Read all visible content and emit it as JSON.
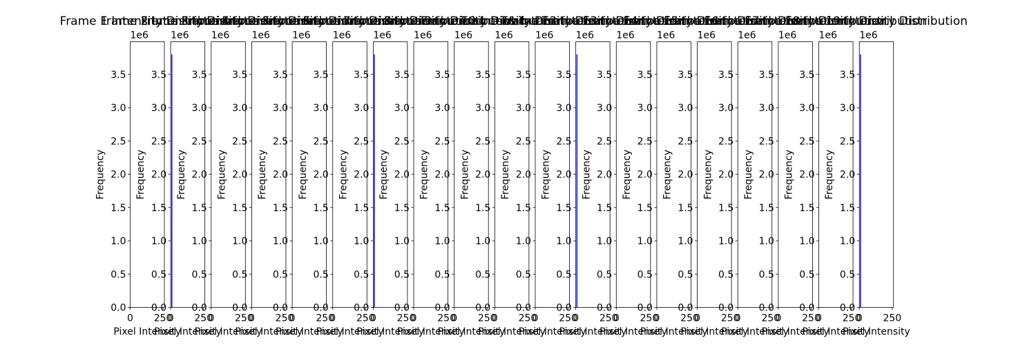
{
  "chart_data": {
    "type": "bar",
    "panel_count": 19,
    "shared": {
      "xlabel": "Pixel Intensity",
      "ylabel": "Frequency",
      "y_offset_label": "1e6",
      "xlim": [
        0,
        260
      ],
      "ylim": [
        0,
        3990000
      ],
      "x_ticks": [
        0,
        250
      ],
      "x_tick_labels": [
        "0",
        "250"
      ],
      "y_ticks": [
        0,
        500000,
        1000000,
        1500000,
        2000000,
        2500000,
        3000000,
        3500000
      ],
      "y_tick_labels": [
        "0.0",
        "0.5",
        "1.0",
        "1.5",
        "2.0",
        "2.5",
        "3.0",
        "3.5"
      ],
      "bar_color": "#0000ff",
      "grid": false
    },
    "panels": [
      {
        "title": "Frame 1 Intensity Distribution",
        "bars": []
      },
      {
        "title": "Frame 2 Intensity Distribution",
        "bars": [
          {
            "x": 0,
            "value": 3800000
          }
        ]
      },
      {
        "title": "Frame 3 Intensity Distribution",
        "bars": []
      },
      {
        "title": "Frame 4 Intensity Distribution",
        "bars": []
      },
      {
        "title": "Frame 5 Intensity Distribution",
        "bars": []
      },
      {
        "title": "Frame 6 Intensity Distribution",
        "bars": []
      },
      {
        "title": "Frame 7 Intensity Distribution",
        "bars": [
          {
            "x": 0,
            "value": 3800000
          }
        ]
      },
      {
        "title": "Frame 8 Intensity Distribution",
        "bars": []
      },
      {
        "title": "Frame 9 Intensity Distribution",
        "bars": []
      },
      {
        "title": "Frame 10 Intensity Distribution",
        "bars": []
      },
      {
        "title": "Frame 11 Intensity Distribution",
        "bars": []
      },
      {
        "title": "Frame 12 Intensity Distribution",
        "bars": [
          {
            "x": 0,
            "value": 3800000
          }
        ]
      },
      {
        "title": "Frame 13 Intensity Distribution",
        "bars": []
      },
      {
        "title": "Frame 14 Intensity Distribution",
        "bars": []
      },
      {
        "title": "Frame 15 Intensity Distribution",
        "bars": []
      },
      {
        "title": "Frame 16 Intensity Distribution",
        "bars": []
      },
      {
        "title": "Frame 17 Intensity Distribution",
        "bars": []
      },
      {
        "title": "Frame 18 Intensity Distribution",
        "bars": []
      },
      {
        "title": "Frame 19 Intensity Distribution",
        "bars": [
          {
            "x": 0,
            "value": 3800000
          }
        ]
      }
    ]
  }
}
